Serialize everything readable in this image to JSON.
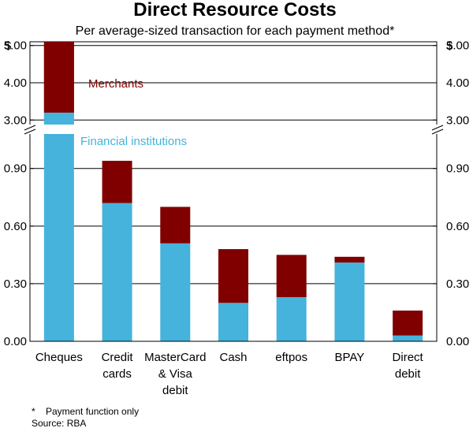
{
  "chart_data": {
    "type": "bar",
    "stacked": true,
    "broken_axis": true,
    "title": "Direct Resource Costs",
    "subtitle": "Per average-sized transaction for each payment method*",
    "y_unit_left": "$",
    "y_unit_right": "$",
    "categories": [
      [
        "Cheques"
      ],
      [
        "Credit",
        "cards"
      ],
      [
        "MasterCard",
        "& Visa",
        "debit"
      ],
      [
        "Cash"
      ],
      [
        "eftpos"
      ],
      [
        "BPAY"
      ],
      [
        "Direct",
        "debit"
      ]
    ],
    "series": [
      {
        "name": "Financial institutions",
        "color": "#45b3dc",
        "values": [
          3.2,
          0.72,
          0.51,
          0.2,
          0.23,
          0.41,
          0.03
        ]
      },
      {
        "name": "Merchants",
        "color": "#800000",
        "values": [
          1.9,
          0.22,
          0.19,
          0.28,
          0.22,
          0.03,
          0.13
        ]
      }
    ],
    "lower_axis": {
      "ylim": [
        0,
        1.1
      ],
      "ticks": [
        "0.00",
        "0.30",
        "0.60",
        "0.90"
      ]
    },
    "upper_axis": {
      "ylim": [
        2.9,
        5.1
      ],
      "ticks": [
        "3.00",
        "4.00",
        "5.00"
      ]
    },
    "legend_labels": {
      "merchants": "Merchants",
      "financial": "Financial institutions"
    },
    "footnote": "*    Payment function only",
    "source": "Source: RBA"
  }
}
